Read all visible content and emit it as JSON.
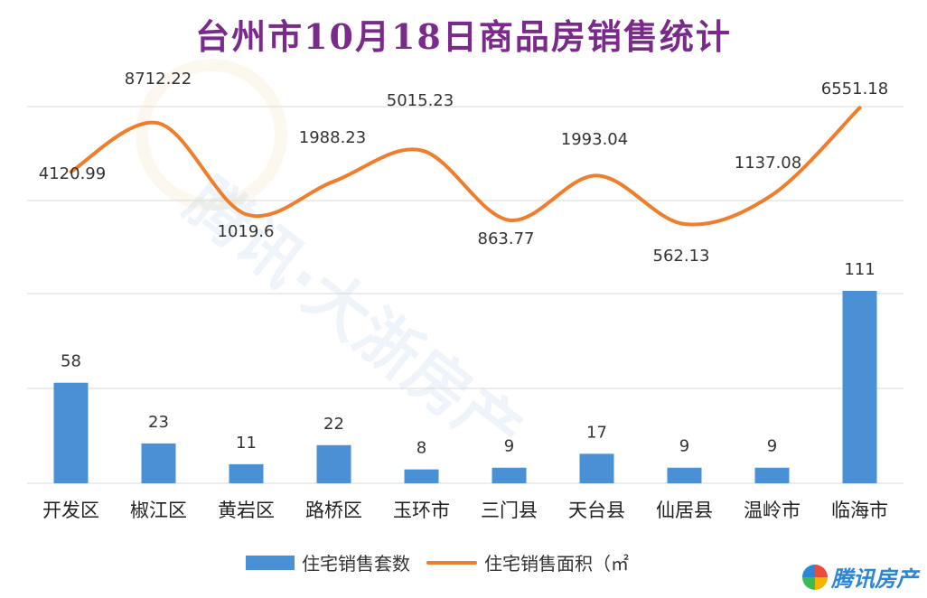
{
  "title": "台州市10月18日商品房销售统计",
  "legend": {
    "bar_label": "住宅销售套数",
    "line_label": "住宅销售面积（㎡"
  },
  "logo": {
    "text": "腾讯房产"
  },
  "watermark": {
    "text": "腾讯·大浙房产"
  },
  "colors": {
    "bar": "#4a90d4",
    "line": "#ef7d2b",
    "title": "#7a2a8a"
  },
  "chart_data": {
    "type": "bar",
    "title": "台州市10月18日商品房销售统计",
    "categories": [
      "开发区",
      "椒江区",
      "黄岩区",
      "路桥区",
      "玉环市",
      "三门县",
      "天台县",
      "仙居县",
      "温岭市",
      "临海市"
    ],
    "series": [
      {
        "name": "住宅销售套数",
        "type": "bar",
        "values": [
          58,
          23,
          11,
          22,
          8,
          9,
          17,
          9,
          9,
          111
        ]
      },
      {
        "name": "住宅销售面积（㎡",
        "type": "line",
        "values": [
          4120.99,
          8712.22,
          1019.6,
          1988.23,
          5015.23,
          863.77,
          1993.04,
          562.13,
          1137.08,
          6551.18
        ]
      }
    ],
    "value_labels_bar": [
      "58",
      "23",
      "11",
      "22",
      "8",
      "9",
      "17",
      "9",
      "9",
      "111"
    ],
    "value_labels_line": [
      "4120.99",
      "8712.22",
      "1019.6",
      "1988.23",
      "5015.23",
      "863.77",
      "1993.04",
      "562.13",
      "1137.08",
      "6551.18"
    ],
    "line_display_levels": [
      0.27,
      0.52,
      0.05,
      0.22,
      0.38,
      0.02,
      0.25,
      0.0,
      0.15,
      0.6
    ],
    "grid": true,
    "legend_position": "bottom"
  }
}
